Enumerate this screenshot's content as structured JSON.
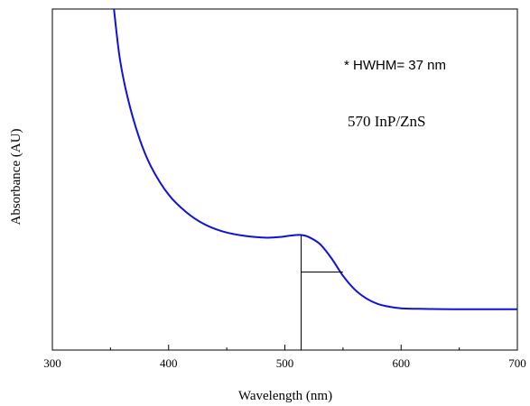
{
  "chart_data": {
    "type": "line",
    "title": "",
    "xlabel": "Wavelength (nm)",
    "ylabel": "Absorbance (AU)",
    "xlim": [
      300,
      700
    ],
    "ylim": [
      0,
      1
    ],
    "x_ticks": [
      "300",
      "400",
      "500",
      "600",
      "700"
    ],
    "y_ticks_labeled": false,
    "grid": false,
    "annotations": [
      "* HWHM= 37 nm",
      "570 InP/ZnS"
    ],
    "series": [
      {
        "color": "#1010dd",
        "x": [
          353,
          358,
          365,
          375,
          385,
          400,
          415,
          430,
          445,
          460,
          475,
          485,
          495,
          505,
          513,
          520,
          530,
          540,
          550,
          560,
          570,
          580,
          590,
          600,
          620,
          650,
          700
        ],
        "y": [
          1.0,
          0.84,
          0.71,
          0.58,
          0.49,
          0.4,
          0.344,
          0.306,
          0.283,
          0.27,
          0.263,
          0.261,
          0.263,
          0.268,
          0.27,
          0.264,
          0.241,
          0.195,
          0.138,
          0.094,
          0.065,
          0.047,
          0.038,
          0.033,
          0.031,
          0.03,
          0.03
        ]
      }
    ],
    "hwhm_marker": {
      "peak_x": 514,
      "peak_y": 0.27,
      "half_y": 0.15,
      "half_x_end": 550,
      "baseline_y": -0.08
    }
  }
}
